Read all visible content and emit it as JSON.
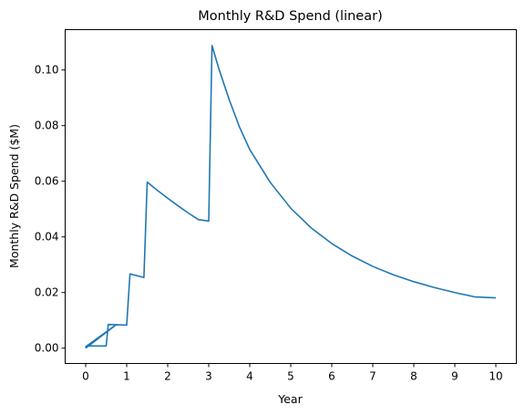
{
  "chart_data": {
    "type": "line",
    "title": "Monthly R&D Spend (linear)",
    "xlabel": "Year",
    "ylabel": "Monthly R&D Spend ($M)",
    "xlim": [
      -0.5,
      10.5
    ],
    "ylim": [
      -0.0055,
      0.1145
    ],
    "xticks": [
      0,
      1,
      2,
      3,
      4,
      5,
      6,
      7,
      8,
      9,
      10
    ],
    "yticks": [
      0.0,
      0.02,
      0.04,
      0.06,
      0.08,
      0.1
    ],
    "ytick_labels": [
      "0.00",
      "0.02",
      "0.04",
      "0.06",
      "0.08",
      "0.10"
    ],
    "grid": false,
    "series": [
      {
        "color": "#1f77b4",
        "x": [
          0.0,
          0.75,
          0.0,
          0.08,
          0.5,
          0.55,
          1.0,
          1.08,
          1.42,
          1.5,
          1.75,
          2.0,
          2.25,
          2.5,
          2.75,
          3.0,
          3.08,
          3.25,
          3.5,
          3.75,
          4.0,
          4.5,
          5.0,
          5.5,
          6.0,
          6.5,
          7.0,
          7.5,
          8.0,
          8.5,
          9.0,
          9.5,
          10.0
        ],
        "y": [
          0.0,
          0.0085,
          0.0005,
          0.0008,
          0.0008,
          0.0085,
          0.0083,
          0.0267,
          0.0254,
          0.0597,
          0.0567,
          0.0539,
          0.0512,
          0.0486,
          0.0462,
          0.0457,
          0.1088,
          0.1003,
          0.0893,
          0.0795,
          0.0714,
          0.0596,
          0.0503,
          0.0432,
          0.0376,
          0.0331,
          0.0294,
          0.0264,
          0.0239,
          0.0218,
          0.02,
          0.0184,
          0.0181
        ]
      }
    ]
  }
}
